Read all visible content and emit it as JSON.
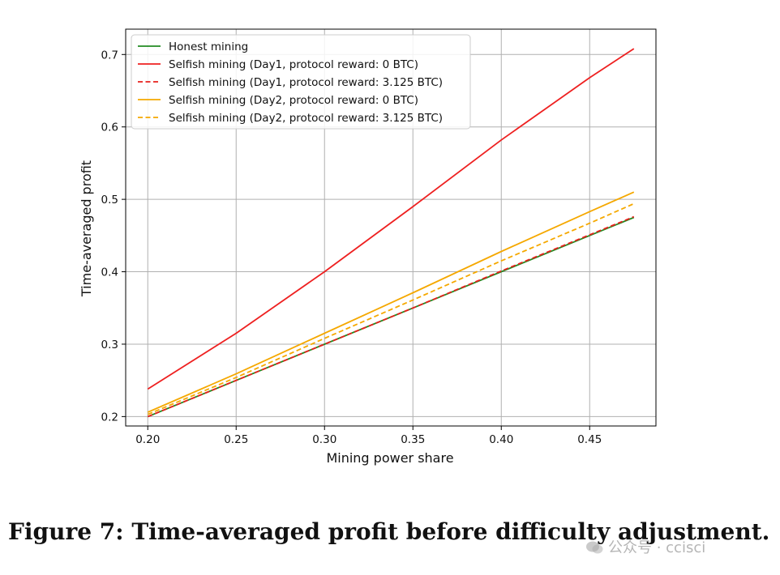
{
  "chart_data": {
    "type": "line",
    "xlabel": "Mining power share",
    "ylabel": "Time-averaged profit",
    "xlim": [
      0.1875,
      0.4875
    ],
    "ylim": [
      0.187,
      0.735
    ],
    "grid": true,
    "legend_position": "top-left",
    "x_ticks": [
      "0.20",
      "0.25",
      "0.30",
      "0.35",
      "0.40",
      "0.45"
    ],
    "y_ticks": [
      "0.2",
      "0.3",
      "0.4",
      "0.5",
      "0.6",
      "0.7"
    ],
    "x": [
      0.2,
      0.25,
      0.3,
      0.35,
      0.4,
      0.45,
      0.475
    ],
    "series": [
      {
        "name": "Honest mining",
        "color": "#228b22",
        "style": "solid",
        "values": [
          0.2,
          0.25,
          0.3,
          0.35,
          0.4,
          0.45,
          0.475
        ]
      },
      {
        "name": "Selfish mining (Day1, protocol reward: 0 BTC)",
        "color": "#ee2020",
        "style": "solid",
        "values": [
          0.238,
          0.315,
          0.4,
          0.49,
          0.582,
          0.668,
          0.708
        ]
      },
      {
        "name": "Selfish mining (Day1, protocol reward: 3.125 BTC)",
        "color": "#e8201c",
        "style": "dashed",
        "values": [
          0.2,
          0.25,
          0.3,
          0.35,
          0.401,
          0.451,
          0.476
        ]
      },
      {
        "name": "Selfish mining (Day2, protocol reward: 0 BTC)",
        "color": "#f5a800",
        "style": "solid",
        "values": [
          0.206,
          0.259,
          0.315,
          0.371,
          0.428,
          0.483,
          0.51
        ]
      },
      {
        "name": "Selfish mining (Day2, protocol reward: 3.125 BTC)",
        "color": "#f5a800",
        "style": "dashed",
        "values": [
          0.203,
          0.254,
          0.308,
          0.361,
          0.415,
          0.467,
          0.494
        ]
      }
    ]
  },
  "caption": "Figure 7: Time-averaged profit before difficulty adjustment.",
  "watermark": "公众号 · ccisci"
}
